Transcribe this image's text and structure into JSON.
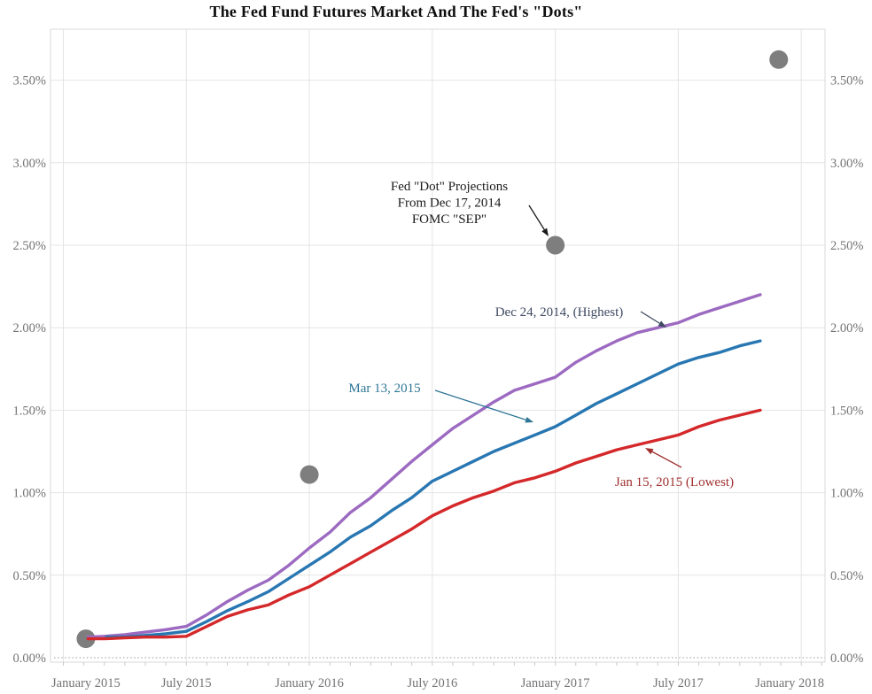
{
  "title": "The Fed Fund Futures Market And  The Fed's \"Dots\"",
  "chart_data": {
    "type": "line",
    "title": "The Fed Fund Futures Market And  The Fed's \"Dots\"",
    "x_unit": "months since January 2015",
    "xlim_months": [
      -0.5,
      37.2
    ],
    "ylim_percent": [
      -0.03,
      3.81
    ],
    "grid": true,
    "x_ticks": [
      {
        "m": 0,
        "label": "January 2015",
        "align": "left"
      },
      {
        "m": 6,
        "label": "July 2015",
        "align": "center"
      },
      {
        "m": 12,
        "label": "January 2016",
        "align": "center"
      },
      {
        "m": 18,
        "label": "July 2016",
        "align": "center"
      },
      {
        "m": 24,
        "label": "January 2017",
        "align": "center"
      },
      {
        "m": 30,
        "label": "July 2017",
        "align": "center"
      },
      {
        "m": 36,
        "label": "January 2018",
        "align": "right"
      }
    ],
    "y_ticks": [
      {
        "v": 0.0,
        "label": "0.00%"
      },
      {
        "v": 0.5,
        "label": "0.50%"
      },
      {
        "v": 1.0,
        "label": "1.00%"
      },
      {
        "v": 1.5,
        "label": "1.50%"
      },
      {
        "v": 2.0,
        "label": "2.00%"
      },
      {
        "v": 2.5,
        "label": "2.50%"
      },
      {
        "v": 3.0,
        "label": "3.00%"
      },
      {
        "v": 3.5,
        "label": "3.50%"
      }
    ],
    "y_label_sides": [
      "left",
      "right"
    ],
    "series": [
      {
        "name": "Dec 24, 2014, (Highest)",
        "color": "#9c6ac1",
        "points": [
          [
            1.2,
            0.125
          ],
          [
            2,
            0.13
          ],
          [
            3,
            0.14
          ],
          [
            4,
            0.155
          ],
          [
            5,
            0.17
          ],
          [
            6,
            0.19
          ],
          [
            7,
            0.26
          ],
          [
            8,
            0.34
          ],
          [
            9,
            0.41
          ],
          [
            10,
            0.47
          ],
          [
            11,
            0.56
          ],
          [
            12,
            0.665
          ],
          [
            13,
            0.76
          ],
          [
            14,
            0.88
          ],
          [
            15,
            0.97
          ],
          [
            16,
            1.08
          ],
          [
            17,
            1.19
          ],
          [
            18,
            1.29
          ],
          [
            19,
            1.39
          ],
          [
            20,
            1.47
          ],
          [
            21,
            1.55
          ],
          [
            22,
            1.62
          ],
          [
            23,
            1.66
          ],
          [
            24,
            1.7
          ],
          [
            25,
            1.79
          ],
          [
            26,
            1.86
          ],
          [
            27,
            1.92
          ],
          [
            28,
            1.97
          ],
          [
            29,
            2.0
          ],
          [
            30,
            2.03
          ],
          [
            31,
            2.08
          ],
          [
            32,
            2.12
          ],
          [
            33,
            2.16
          ],
          [
            34,
            2.2
          ]
        ]
      },
      {
        "name": "Mar 13, 2015",
        "color": "#2877b2",
        "points": [
          [
            2.1,
            0.125
          ],
          [
            3,
            0.125
          ],
          [
            4,
            0.135
          ],
          [
            5,
            0.145
          ],
          [
            6,
            0.16
          ],
          [
            7,
            0.22
          ],
          [
            8,
            0.285
          ],
          [
            9,
            0.34
          ],
          [
            10,
            0.4
          ],
          [
            11,
            0.48
          ],
          [
            12,
            0.56
          ],
          [
            13,
            0.64
          ],
          [
            14,
            0.73
          ],
          [
            15,
            0.8
          ],
          [
            16,
            0.89
          ],
          [
            17,
            0.97
          ],
          [
            18,
            1.07
          ],
          [
            19,
            1.13
          ],
          [
            20,
            1.19
          ],
          [
            21,
            1.25
          ],
          [
            22,
            1.3
          ],
          [
            23,
            1.35
          ],
          [
            24,
            1.4
          ],
          [
            25,
            1.47
          ],
          [
            26,
            1.54
          ],
          [
            27,
            1.6
          ],
          [
            28,
            1.66
          ],
          [
            29,
            1.72
          ],
          [
            30,
            1.78
          ],
          [
            31,
            1.82
          ],
          [
            32,
            1.85
          ],
          [
            33,
            1.89
          ],
          [
            34,
            1.92
          ]
        ]
      },
      {
        "name": "Jan 15, 2015 (Lowest)",
        "color": "#d4282a",
        "points": [
          [
            1.2,
            0.115
          ],
          [
            2,
            0.115
          ],
          [
            3,
            0.12
          ],
          [
            4,
            0.125
          ],
          [
            5,
            0.125
          ],
          [
            6,
            0.13
          ],
          [
            7,
            0.19
          ],
          [
            8,
            0.25
          ],
          [
            9,
            0.29
          ],
          [
            10,
            0.32
          ],
          [
            11,
            0.38
          ],
          [
            12,
            0.43
          ],
          [
            13,
            0.5
          ],
          [
            14,
            0.57
          ],
          [
            15,
            0.64
          ],
          [
            16,
            0.71
          ],
          [
            17,
            0.78
          ],
          [
            18,
            0.86
          ],
          [
            19,
            0.92
          ],
          [
            20,
            0.97
          ],
          [
            21,
            1.01
          ],
          [
            22,
            1.06
          ],
          [
            23,
            1.09
          ],
          [
            24,
            1.13
          ],
          [
            25,
            1.18
          ],
          [
            26,
            1.22
          ],
          [
            27,
            1.26
          ],
          [
            28,
            1.29
          ],
          [
            29,
            1.32
          ],
          [
            30,
            1.35
          ],
          [
            31,
            1.4
          ],
          [
            32,
            1.44
          ],
          [
            33,
            1.47
          ],
          [
            34,
            1.5
          ]
        ]
      }
    ],
    "dots": {
      "name": "Fed \"Dot\" Projections From Dec 17, 2014 FOMC \"SEP\"",
      "color": "#7e7e7e",
      "radius": 10.5,
      "points": [
        [
          1.1,
          0.115
        ],
        [
          12,
          1.11
        ],
        [
          24,
          2.5
        ],
        [
          34.9,
          3.625
        ]
      ]
    },
    "annotations": [
      {
        "id": "fed-dot-projections-label",
        "lines": [
          "Fed \"Dot\" Projections",
          "From Dec 17, 2014",
          "FOMC \"SEP\""
        ],
        "color": "#1a1a1a",
        "tx": 507,
        "ty": 215,
        "line_height": 18.5,
        "arrow": [
          597,
          232,
          619,
          267
        ]
      },
      {
        "id": "highest-series-label",
        "lines": [
          "Dec 24, 2014, (Highest)"
        ],
        "color": "#3f4a63",
        "tx": 631,
        "ty": 357,
        "line_height": 18,
        "arrow": [
          723,
          352,
          752,
          370
        ]
      },
      {
        "id": "mar-13-series-label",
        "lines": [
          "Mar 13, 2015"
        ],
        "color": "#2e7695",
        "tx": 434,
        "ty": 443,
        "line_height": 18,
        "arrow": [
          491,
          441,
          602,
          477
        ]
      },
      {
        "id": "lowest-series-label",
        "lines": [
          "Jan 15, 2015 (Lowest)"
        ],
        "color": "#a03030",
        "tx": 761,
        "ty": 549,
        "line_height": 18,
        "arrow": [
          769,
          528,
          728,
          506
        ]
      }
    ]
  }
}
